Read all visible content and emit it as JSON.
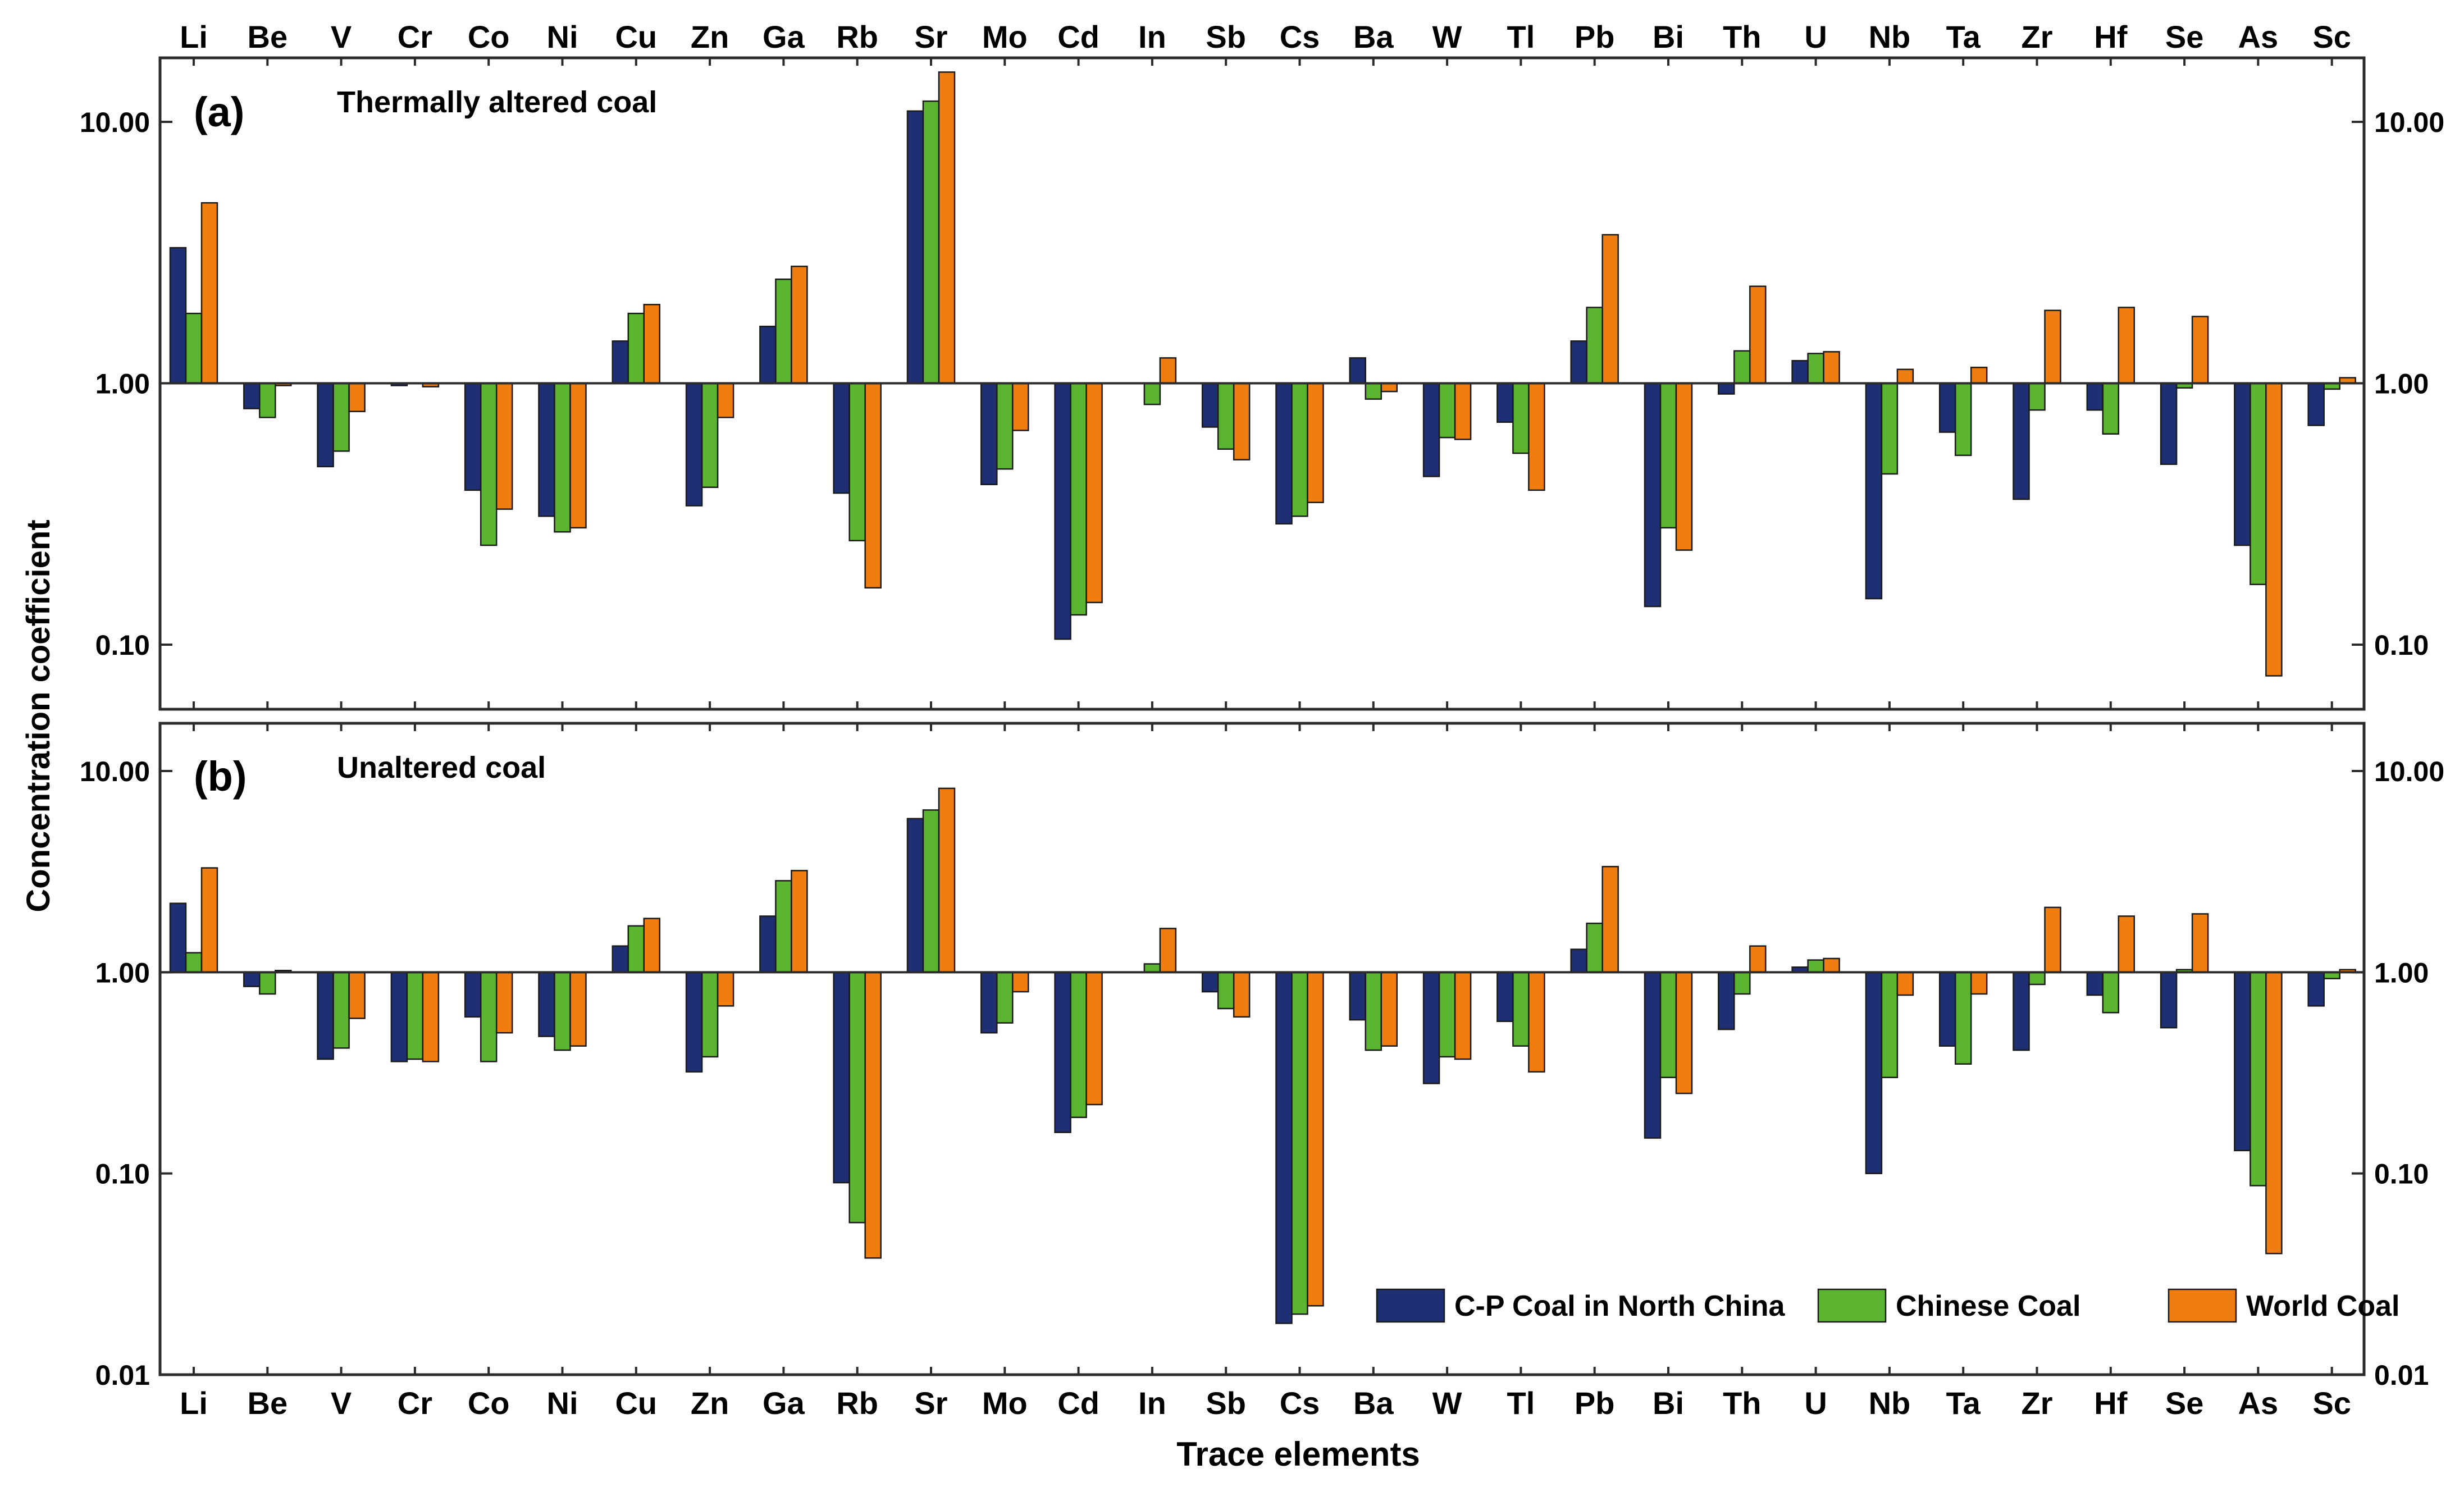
{
  "chart_data": {
    "type": "bar",
    "ylabel": "Concentration coefficient",
    "xlabel": "Trace elements",
    "categories": [
      "Li",
      "Be",
      "V",
      "Cr",
      "Co",
      "Ni",
      "Cu",
      "Zn",
      "Ga",
      "Rb",
      "Sr",
      "Mo",
      "Cd",
      "In",
      "Sb",
      "Cs",
      "Ba",
      "W",
      "Tl",
      "Pb",
      "Bi",
      "Th",
      "U",
      "Nb",
      "Ta",
      "Zr",
      "Hf",
      "Se",
      "As",
      "Sc"
    ],
    "series_names": [
      "C-P Coal in North China",
      "Chinese Coal",
      "World Coal"
    ],
    "colors": [
      "#1e2f73",
      "#5cb531",
      "#f07d10"
    ],
    "legend": [
      {
        "label": "C-P Coal in North China",
        "color": "#1e2f73"
      },
      {
        "label": "Chinese Coal",
        "color": "#5cb531"
      },
      {
        "label": "World Coal",
        "color": "#f07d10"
      }
    ],
    "panels": [
      {
        "label": "(a)",
        "title": "Thermally altered coal",
        "yscale": "log",
        "ylim": [
          0.05,
          16
        ],
        "yticks": [
          0.1,
          1,
          10
        ],
        "ytick_labels": [
          "0.10",
          "1.00",
          "10.00"
        ],
        "series": [
          {
            "name": "C-P Coal in North China",
            "values": [
              3.3,
              0.8,
              0.48,
              0.98,
              0.39,
              0.31,
              1.45,
              0.34,
              1.65,
              0.38,
              11.0,
              0.41,
              0.105,
              null,
              0.68,
              0.29,
              1.25,
              0.44,
              0.71,
              1.45,
              0.14,
              0.91,
              1.22,
              0.15,
              0.65,
              0.36,
              0.79,
              0.49,
              0.24,
              0.69
            ]
          },
          {
            "name": "Chinese Coal",
            "values": [
              1.85,
              0.74,
              0.55,
              null,
              0.24,
              0.27,
              1.85,
              0.4,
              2.5,
              0.25,
              12.0,
              0.47,
              0.13,
              0.83,
              0.56,
              0.31,
              0.87,
              0.62,
              0.54,
              1.95,
              0.28,
              1.33,
              1.3,
              0.45,
              0.53,
              0.79,
              0.64,
              0.96,
              0.17,
              0.95
            ]
          },
          {
            "name": "World Coal",
            "values": [
              4.9,
              0.98,
              0.78,
              0.97,
              0.33,
              0.28,
              2.0,
              0.74,
              2.8,
              0.165,
              15.5,
              0.66,
              0.145,
              1.25,
              0.51,
              0.35,
              0.93,
              0.61,
              0.39,
              3.7,
              0.23,
              2.35,
              1.32,
              1.13,
              1.15,
              1.9,
              1.95,
              1.8,
              0.076,
              1.05
            ]
          }
        ]
      },
      {
        "label": "(b)",
        "title": "Unaltered coal",
        "yscale": "log",
        "ylim": [
          0.01,
          16
        ],
        "yticks": [
          0.01,
          0.1,
          1,
          10
        ],
        "ytick_labels": [
          "0.01",
          "0.10",
          "1.00",
          "10.00"
        ],
        "series": [
          {
            "name": "C-P Coal in North China",
            "values": [
              2.2,
              0.85,
              0.37,
              0.36,
              0.6,
              0.48,
              1.35,
              0.32,
              1.9,
              0.09,
              5.8,
              0.5,
              0.16,
              null,
              0.8,
              0.018,
              0.58,
              0.28,
              0.57,
              1.3,
              0.15,
              0.52,
              1.06,
              0.1,
              0.43,
              0.41,
              0.77,
              0.53,
              0.13,
              0.68
            ]
          },
          {
            "name": "Chinese Coal",
            "values": [
              1.25,
              0.78,
              0.42,
              0.37,
              0.36,
              0.41,
              1.7,
              0.38,
              2.85,
              0.057,
              6.4,
              0.56,
              0.19,
              1.1,
              0.66,
              0.02,
              0.41,
              0.38,
              0.43,
              1.75,
              0.3,
              0.78,
              1.15,
              0.3,
              0.35,
              0.87,
              0.63,
              1.03,
              0.087,
              0.93
            ]
          },
          {
            "name": "World Coal",
            "values": [
              3.3,
              1.02,
              0.59,
              0.36,
              0.5,
              0.43,
              1.85,
              0.68,
              3.2,
              0.038,
              8.2,
              0.8,
              0.22,
              1.65,
              0.6,
              0.022,
              0.43,
              0.37,
              0.32,
              3.35,
              0.25,
              1.35,
              1.17,
              0.77,
              0.78,
              2.1,
              1.9,
              1.95,
              0.04,
              1.03
            ]
          }
        ]
      }
    ]
  }
}
